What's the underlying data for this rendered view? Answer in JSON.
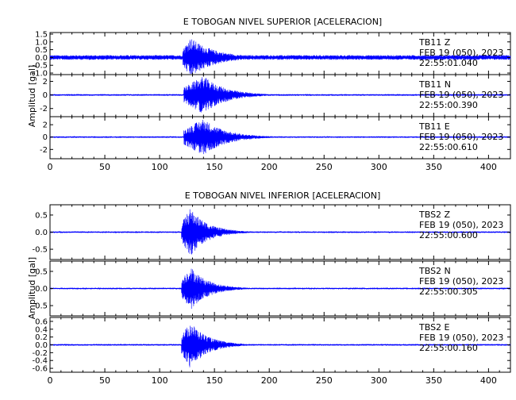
{
  "figure": {
    "trace_color": "#0000ff",
    "axis_color": "#000000"
  },
  "chart_data": [
    {
      "type": "line",
      "title": "E TOBOGAN NIVEL SUPERIOR [ACELERACION]",
      "ylabel": "Amplitud [gal]",
      "xlim": [
        0,
        420
      ],
      "xticks": [
        "0",
        "50",
        "100",
        "150",
        "200",
        "250",
        "300",
        "350",
        "400"
      ],
      "panels": [
        {
          "station": "TB11",
          "component": "Z",
          "label_station_comp": "TB11   Z",
          "label_date": "FEB 19 (050), 2023",
          "label_time": "22:55:01.040",
          "ylim": [
            -1.1,
            1.6
          ],
          "yticks": [
            "1.5",
            "1.0",
            "0.5",
            "0.0",
            "-0.5",
            "-1.0"
          ],
          "noise_amp": 0.15,
          "peak_amp": 1.3,
          "onset_s": 121,
          "peak_s": 128,
          "decay_s": 22
        },
        {
          "station": "TB11",
          "component": "N",
          "label_station_comp": "TB11   N",
          "label_date": "FEB 19 (050), 2023",
          "label_time": "22:55:00.390",
          "ylim": [
            -3.2,
            3.0
          ],
          "yticks": [
            "2",
            "0",
            "-2"
          ],
          "noise_amp": 0.12,
          "peak_amp": 2.8,
          "onset_s": 122,
          "peak_s": 140,
          "decay_s": 20
        },
        {
          "station": "TB11",
          "component": "E",
          "label_station_comp": "TB11   E",
          "label_date": "FEB 19 (050), 2023",
          "label_time": "22:55:00.610",
          "ylim": [
            -3.5,
            3.3
          ],
          "yticks": [
            "2",
            "0",
            "-2"
          ],
          "noise_amp": 0.12,
          "peak_amp": 3.0,
          "onset_s": 122,
          "peak_s": 140,
          "decay_s": 20
        }
      ]
    },
    {
      "type": "line",
      "title": "E TOBOGAN NIVEL INFERIOR [ACELERACION]",
      "ylabel": "Amplitud [gal]",
      "xlim": [
        0,
        420
      ],
      "xticks": [
        "0",
        "50",
        "100",
        "150",
        "200",
        "250",
        "300",
        "350",
        "400"
      ],
      "panels": [
        {
          "station": "TBS2",
          "component": "Z",
          "label_station_comp": "TBS2   Z",
          "label_date": "FEB 19 (050), 2023",
          "label_time": "22:55:00.600",
          "ylim": [
            -0.8,
            0.8
          ],
          "yticks": [
            "0.5",
            "0.0",
            "-0.5"
          ],
          "noise_amp": 0.02,
          "peak_amp": 0.7,
          "onset_s": 120,
          "peak_s": 128,
          "decay_s": 16
        },
        {
          "station": "TBS2",
          "component": "N",
          "label_station_comp": "TBS2   N",
          "label_date": "FEB 19 (050), 2023",
          "label_time": "22:55:00.305",
          "ylim": [
            -0.8,
            0.8
          ],
          "yticks": [
            "0.5",
            "0.0",
            "-0.5"
          ],
          "noise_amp": 0.02,
          "peak_amp": 0.65,
          "onset_s": 120,
          "peak_s": 128,
          "decay_s": 16
        },
        {
          "station": "TBS2",
          "component": "E",
          "label_station_comp": "TBS2   E",
          "label_date": "FEB 19 (050), 2023",
          "label_time": "22:55:00.160",
          "ylim": [
            -0.7,
            0.7
          ],
          "yticks": [
            "0.6",
            "0.4",
            "0.2",
            "0.0",
            "-0.2",
            "-0.4",
            "-0.6"
          ],
          "noise_amp": 0.02,
          "peak_amp": 0.6,
          "onset_s": 120,
          "peak_s": 128,
          "decay_s": 16
        }
      ]
    }
  ]
}
